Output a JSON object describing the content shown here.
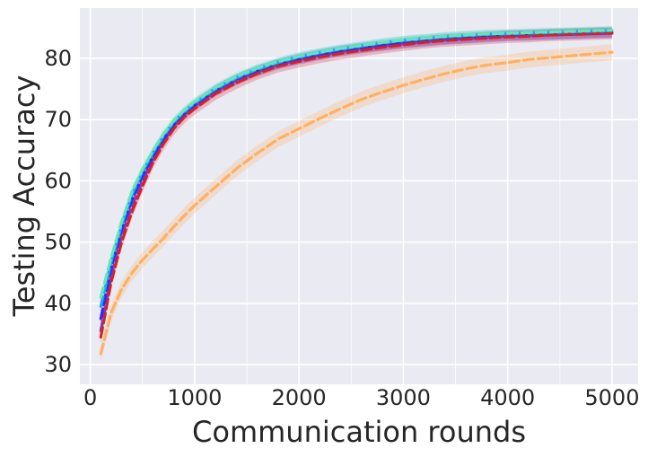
{
  "chart_data": {
    "type": "line",
    "title": "",
    "xlabel": "Communication rounds",
    "ylabel": "Testing Accuracy",
    "xlim": [
      -100,
      5250
    ],
    "ylim": [
      26.8,
      88.2
    ],
    "xticks": [
      0,
      1000,
      2000,
      3000,
      4000,
      5000
    ],
    "yticks": [
      30,
      40,
      50,
      60,
      70,
      80
    ],
    "grid": true,
    "background": "#eaeaf2",
    "legend": "none",
    "x": [
      100,
      200,
      300,
      400,
      500,
      600,
      700,
      800,
      900,
      1000,
      1200,
      1400,
      1600,
      1800,
      2000,
      2200,
      2400,
      2600,
      2800,
      3000,
      3200,
      3400,
      3600,
      3800,
      4000,
      4200,
      4400,
      4600,
      4800,
      5000
    ],
    "series": [
      {
        "color": "#7b3fb5",
        "band": 0.8,
        "values": [
          35.5,
          44.5,
          51.0,
          56.0,
          60.0,
          63.5,
          66.5,
          69.0,
          70.8,
          72.2,
          74.6,
          76.4,
          77.8,
          79.0,
          79.8,
          80.5,
          81.1,
          81.6,
          82.0,
          82.4,
          82.7,
          83.0,
          83.2,
          83.4,
          83.6,
          83.7,
          83.8,
          83.9,
          84.0,
          84.1
        ]
      },
      {
        "color": "#2a2cff",
        "band": 0.8,
        "values": [
          37.5,
          45.8,
          52.0,
          57.0,
          60.8,
          64.0,
          66.8,
          69.2,
          71.0,
          72.4,
          74.8,
          76.6,
          78.0,
          79.1,
          79.9,
          80.6,
          81.2,
          81.7,
          82.1,
          82.5,
          82.8,
          83.1,
          83.3,
          83.5,
          83.7,
          83.8,
          83.9,
          84.0,
          84.1,
          84.2
        ]
      },
      {
        "color": "#d6202a",
        "band": 1.0,
        "values": [
          34.5,
          43.5,
          50.0,
          55.0,
          59.2,
          63.0,
          66.0,
          68.5,
          70.4,
          71.8,
          74.2,
          76.0,
          77.5,
          78.7,
          79.5,
          80.2,
          80.8,
          81.3,
          81.8,
          82.2,
          82.6,
          82.9,
          83.1,
          83.3,
          83.5,
          83.6,
          83.8,
          83.9,
          84.0,
          84.1
        ]
      },
      {
        "color": "#1fa5e8",
        "band": 0.7,
        "values": [
          39.5,
          46.8,
          52.8,
          57.8,
          61.5,
          64.6,
          67.3,
          69.6,
          71.3,
          72.7,
          75.0,
          76.8,
          78.2,
          79.3,
          80.2,
          80.9,
          81.5,
          82.0,
          82.5,
          82.9,
          83.2,
          83.5,
          83.7,
          83.9,
          84.0,
          84.1,
          84.2,
          84.3,
          84.4,
          84.5
        ]
      },
      {
        "color": "#5fe8b4",
        "band": 0.7,
        "values": [
          41.0,
          47.5,
          53.3,
          58.3,
          61.9,
          64.9,
          67.6,
          69.8,
          71.5,
          72.9,
          75.2,
          77.0,
          78.4,
          79.5,
          80.3,
          81.0,
          81.6,
          82.1,
          82.6,
          83.0,
          83.3,
          83.6,
          83.8,
          84.0,
          84.1,
          84.2,
          84.3,
          84.4,
          84.5,
          84.6
        ]
      },
      {
        "color": "#ffb061",
        "band": 1.3,
        "values": [
          31.8,
          38.5,
          42.3,
          45.0,
          47.1,
          48.9,
          50.6,
          52.5,
          54.3,
          56.0,
          59.0,
          62.0,
          64.5,
          66.8,
          68.5,
          70.2,
          71.8,
          73.3,
          74.5,
          75.6,
          76.6,
          77.5,
          78.3,
          78.9,
          79.3,
          79.8,
          80.1,
          80.4,
          80.7,
          81.0
        ]
      }
    ]
  }
}
